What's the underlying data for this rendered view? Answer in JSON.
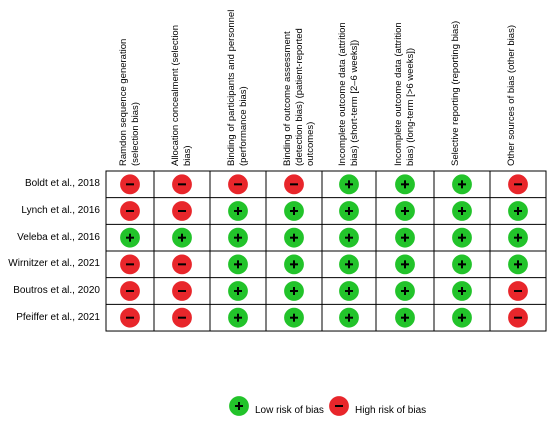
{
  "chart_data": {
    "type": "table",
    "columns": [
      "Ramdon sequence generation (selection bias)",
      "Allocation concealment (selection bias)",
      "Binding of participants and personnel (performance bias)",
      "Binding of outcome assessment (detection bias) (patient-reported outcomes)",
      "Incomplete outcome data (attrition bias) (short-term [2–6 weeks])",
      "Incomplete outcome data (attrition bias) (long-term [>6 weeks])",
      "Selective reporting (reporting bias)",
      "Other sources of bias (other bias)"
    ],
    "rows": [
      {
        "study": "Boldt et al., 2018",
        "ratings": [
          "high",
          "high",
          "high",
          "high",
          "low",
          "low",
          "low",
          "high"
        ]
      },
      {
        "study": "Lynch et al., 2016",
        "ratings": [
          "high",
          "high",
          "low",
          "low",
          "low",
          "low",
          "low",
          "low"
        ]
      },
      {
        "study": "Veleba et al., 2016",
        "ratings": [
          "low",
          "low",
          "low",
          "low",
          "low",
          "low",
          "low",
          "low"
        ]
      },
      {
        "study": "Wirnitzer et al., 2021",
        "ratings": [
          "high",
          "high",
          "low",
          "low",
          "low",
          "low",
          "low",
          "low"
        ]
      },
      {
        "study": "Boutros et al., 2020",
        "ratings": [
          "high",
          "high",
          "low",
          "low",
          "low",
          "low",
          "low",
          "high"
        ]
      },
      {
        "study": "Pfeiffer et al., 2021",
        "ratings": [
          "high",
          "high",
          "low",
          "low",
          "low",
          "low",
          "low",
          "high"
        ]
      }
    ],
    "legend": [
      {
        "key": "low",
        "label": "Low risk of bias",
        "symbol": "+",
        "color": "#22c32a"
      },
      {
        "key": "high",
        "label": "High risk of bias",
        "symbol": "−",
        "color": "#e8262b"
      }
    ],
    "legend_position": "bottom-center"
  }
}
